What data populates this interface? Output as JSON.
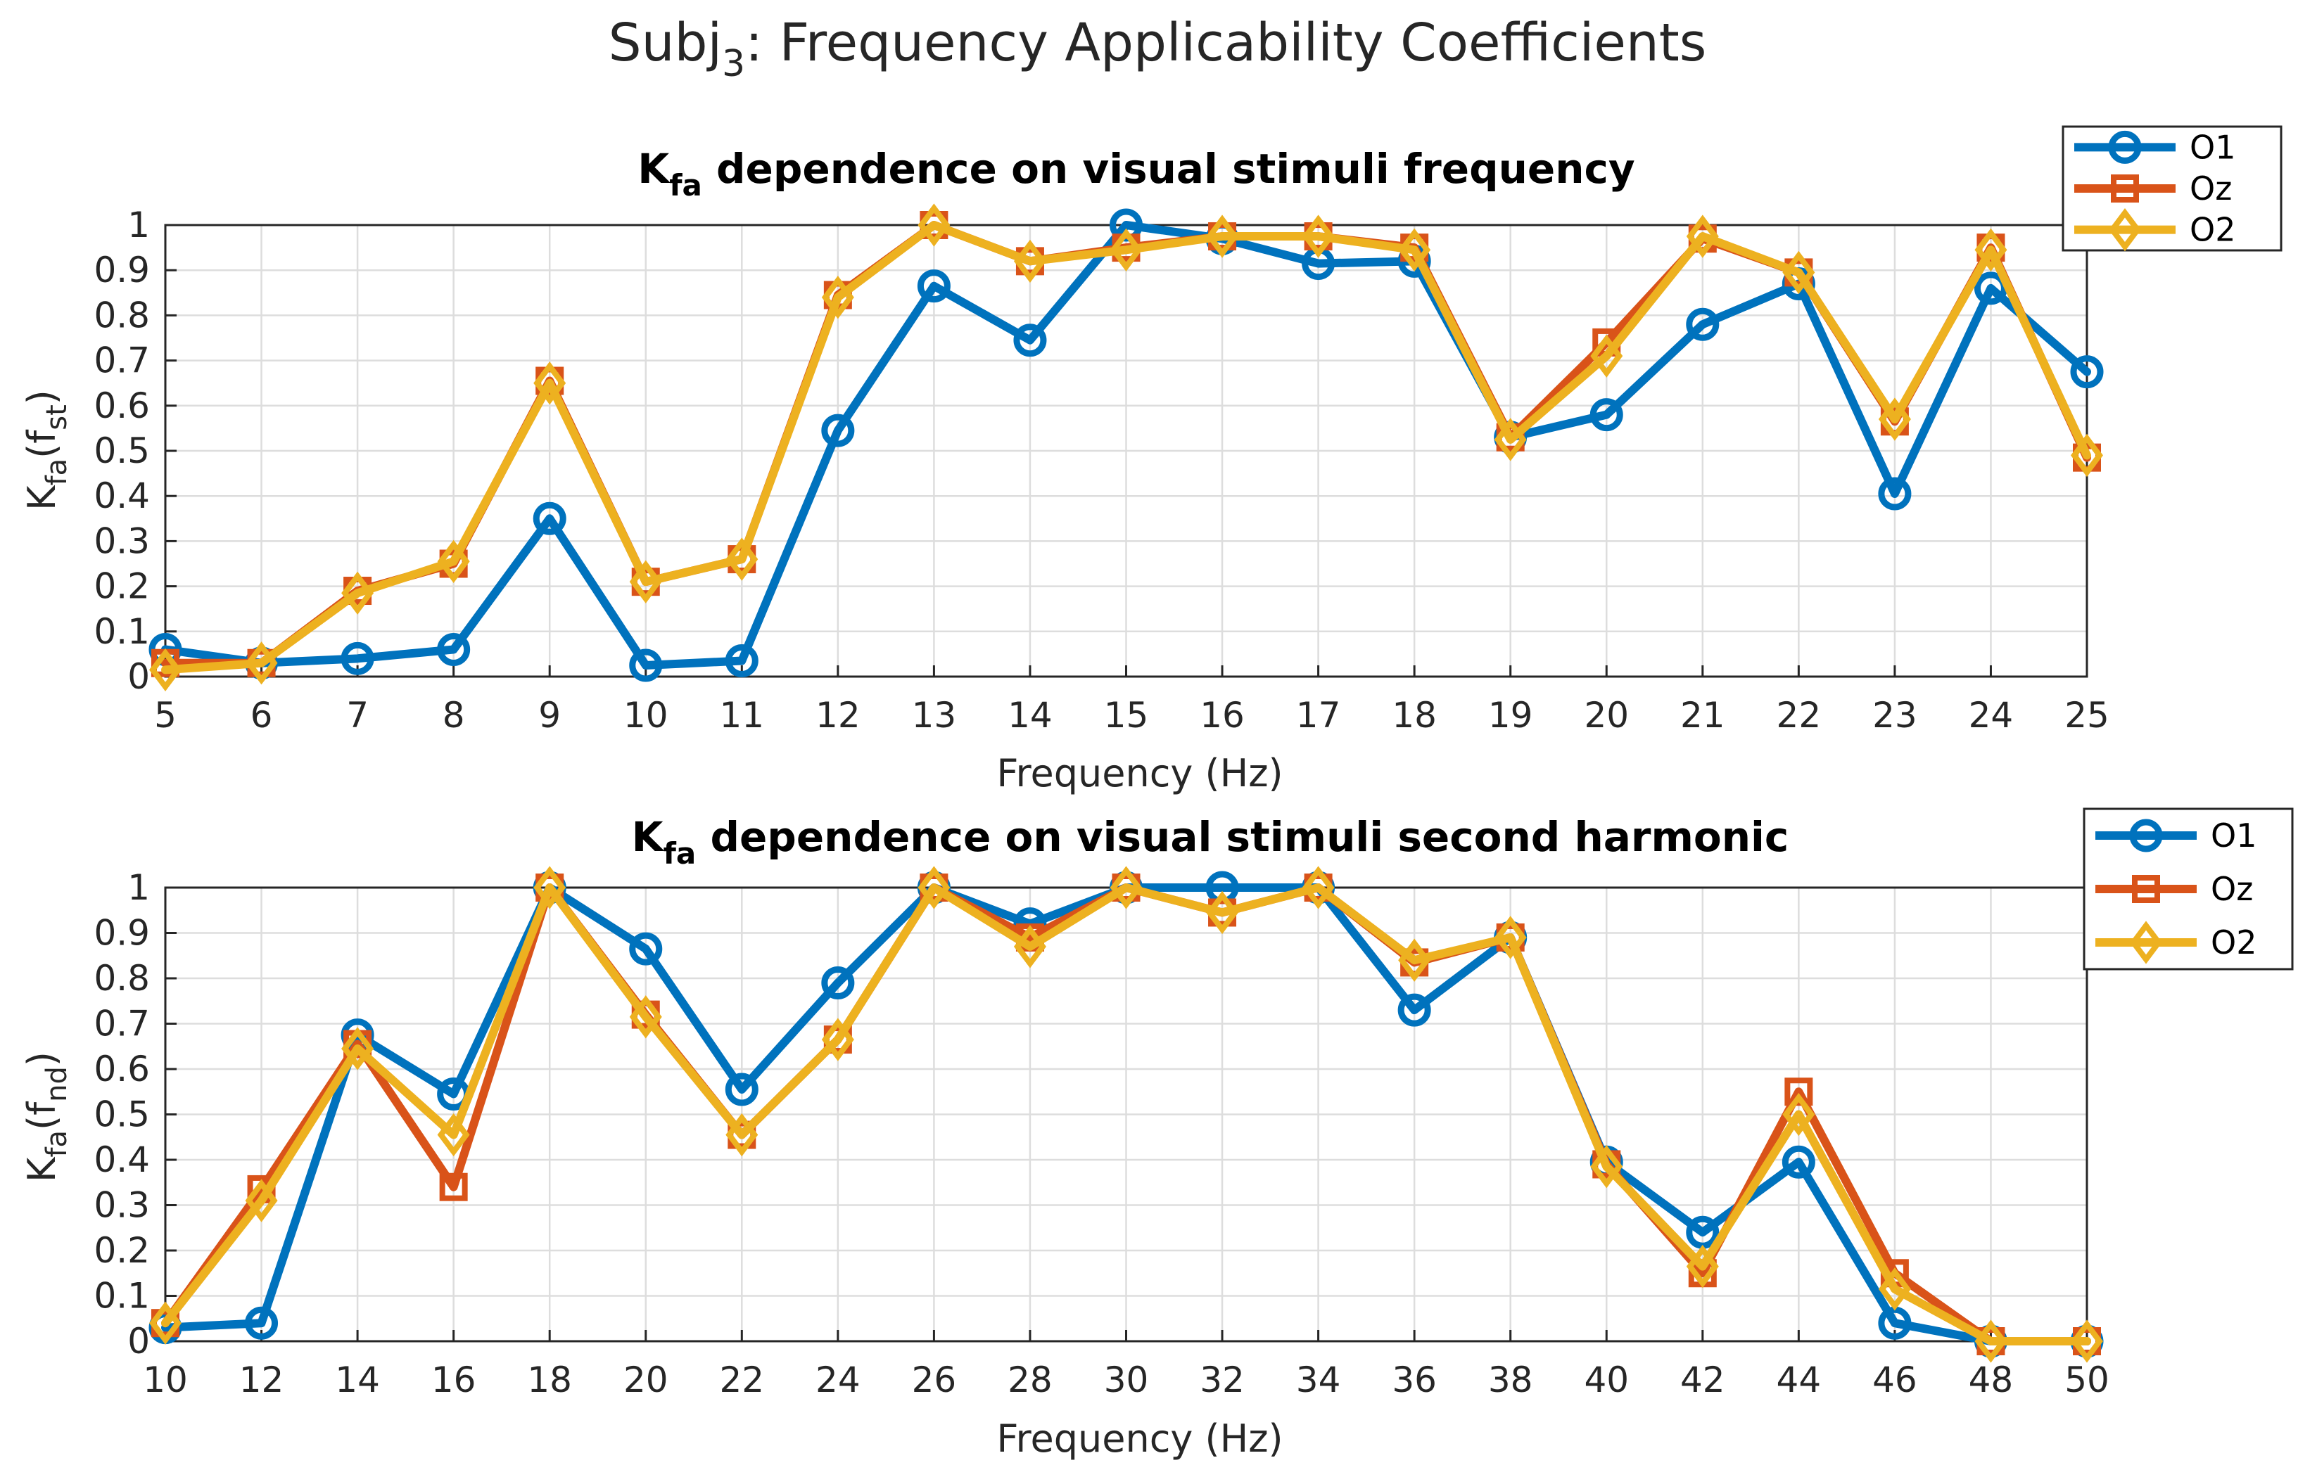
{
  "suptitle": {
    "main": "Subj",
    "sub": "3",
    "rest": ": Frequency Applicability Coefficients"
  },
  "colors": {
    "O1": "#0072BD",
    "Oz": "#D95319",
    "O2": "#EDB120",
    "grid": "#DDDDDD",
    "axis": "#262626"
  },
  "chart_data": [
    {
      "type": "line",
      "title": {
        "pre": "K",
        "sub": "fa",
        "post": " dependence on visual stimuli frequency"
      },
      "xlabel": "Frequency (Hz)",
      "ylabel": {
        "pre": "K",
        "sub1": "fa",
        "mid": "(f",
        "sub2": "st",
        "post": ")"
      },
      "xlim": [
        5,
        25
      ],
      "ylim": [
        0,
        1
      ],
      "grid": true,
      "legend_position": "top-right-outside",
      "x": [
        5,
        6,
        7,
        8,
        9,
        10,
        11,
        12,
        13,
        14,
        15,
        16,
        17,
        18,
        19,
        20,
        21,
        22,
        23,
        24,
        25
      ],
      "xticks": [
        "5",
        "6",
        "7",
        "8",
        "9",
        "10",
        "11",
        "12",
        "13",
        "14",
        "15",
        "16",
        "17",
        "18",
        "19",
        "20",
        "21",
        "22",
        "23",
        "24",
        "25"
      ],
      "yticks": [
        "0",
        "0.1",
        "0.2",
        "0.3",
        "0.4",
        "0.5",
        "0.6",
        "0.7",
        "0.8",
        "0.9",
        "1"
      ],
      "series": [
        {
          "name": "O1",
          "marker": "circle",
          "values": [
            0.06,
            0.03,
            0.04,
            0.06,
            0.35,
            0.025,
            0.035,
            0.545,
            0.865,
            0.745,
            1.0,
            0.97,
            0.915,
            0.92,
            0.53,
            0.58,
            0.78,
            0.87,
            0.405,
            0.86,
            0.675
          ]
        },
        {
          "name": "Oz",
          "marker": "square",
          "values": [
            0.03,
            0.03,
            0.19,
            0.25,
            0.655,
            0.21,
            0.26,
            0.845,
            1.0,
            0.92,
            0.95,
            0.975,
            0.975,
            0.95,
            0.53,
            0.74,
            0.97,
            0.895,
            0.565,
            0.95,
            0.485
          ]
        },
        {
          "name": "O2",
          "marker": "diamond",
          "values": [
            0.015,
            0.03,
            0.185,
            0.255,
            0.65,
            0.21,
            0.26,
            0.84,
            1.0,
            0.92,
            0.945,
            0.975,
            0.975,
            0.945,
            0.525,
            0.71,
            0.975,
            0.895,
            0.57,
            0.945,
            0.49
          ]
        }
      ]
    },
    {
      "type": "line",
      "title": {
        "pre": "K",
        "sub": "fa",
        "post": " dependence on visual stimuli second harmonic"
      },
      "xlabel": "Frequency (Hz)",
      "ylabel": {
        "pre": "K",
        "sub1": "fa",
        "mid": "(f",
        "sub2": "nd",
        "post": ")"
      },
      "xlim": [
        10,
        50
      ],
      "ylim": [
        0,
        1
      ],
      "grid": true,
      "legend_position": "top-right-outside",
      "x": [
        10,
        12,
        14,
        16,
        18,
        20,
        22,
        24,
        26,
        28,
        30,
        32,
        34,
        36,
        38,
        40,
        42,
        44,
        46,
        48,
        50
      ],
      "xticks": [
        "10",
        "12",
        "14",
        "16",
        "18",
        "20",
        "22",
        "24",
        "26",
        "28",
        "30",
        "32",
        "34",
        "36",
        "38",
        "40",
        "42",
        "44",
        "46",
        "48",
        "50"
      ],
      "yticks": [
        "0",
        "0.1",
        "0.2",
        "0.3",
        "0.4",
        "0.5",
        "0.6",
        "0.7",
        "0.8",
        "0.9",
        "1"
      ],
      "series": [
        {
          "name": "O1",
          "marker": "circle",
          "values": [
            0.03,
            0.04,
            0.675,
            0.545,
            1.0,
            0.865,
            0.555,
            0.79,
            1.0,
            0.92,
            1.0,
            1.0,
            1.0,
            0.73,
            0.89,
            0.395,
            0.24,
            0.395,
            0.04,
            0.0,
            0.0
          ]
        },
        {
          "name": "Oz",
          "marker": "square",
          "values": [
            0.04,
            0.335,
            0.655,
            0.34,
            1.0,
            0.72,
            0.455,
            0.665,
            1.0,
            0.89,
            1.0,
            0.945,
            1.0,
            0.835,
            0.89,
            0.39,
            0.15,
            0.55,
            0.15,
            0.0,
            0.0
          ]
        },
        {
          "name": "O2",
          "marker": "diamond",
          "values": [
            0.04,
            0.31,
            0.645,
            0.455,
            1.0,
            0.715,
            0.455,
            0.665,
            1.0,
            0.87,
            1.0,
            0.945,
            1.0,
            0.84,
            0.89,
            0.385,
            0.165,
            0.5,
            0.115,
            0.0,
            0.0
          ]
        }
      ]
    }
  ]
}
